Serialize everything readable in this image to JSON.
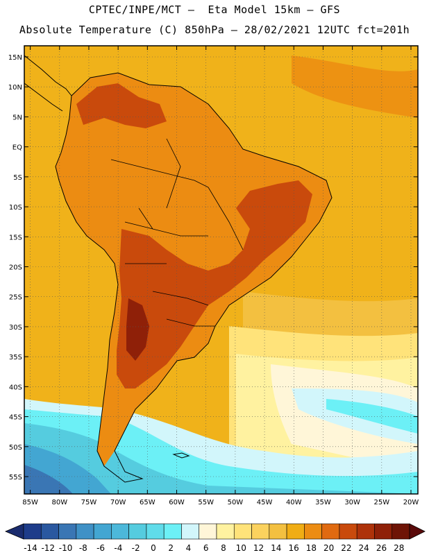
{
  "header": {
    "line1": "CPTEC/INPE/MCT –  Eta Model 15km – GFS",
    "line2": "Absolute Temperature (C) 850hPa – 28/02/2021 12UTC fct=201h"
  },
  "map": {
    "region": "South America",
    "lon_range": [
      -85,
      -20
    ],
    "lat_range": [
      -58,
      17
    ],
    "x_ticks": [
      {
        "v": -85,
        "label": "85W"
      },
      {
        "v": -80,
        "label": "80W"
      },
      {
        "v": -75,
        "label": "75W"
      },
      {
        "v": -70,
        "label": "70W"
      },
      {
        "v": -65,
        "label": "65W"
      },
      {
        "v": -60,
        "label": "60W"
      },
      {
        "v": -55,
        "label": "55W"
      },
      {
        "v": -50,
        "label": "50W"
      },
      {
        "v": -45,
        "label": "45W"
      },
      {
        "v": -40,
        "label": "40W"
      },
      {
        "v": -35,
        "label": "35W"
      },
      {
        "v": -30,
        "label": "30W"
      },
      {
        "v": -25,
        "label": "25W"
      },
      {
        "v": -20,
        "label": "20W"
      }
    ],
    "y_ticks": [
      {
        "v": 15,
        "label": "15N"
      },
      {
        "v": 10,
        "label": "10N"
      },
      {
        "v": 5,
        "label": "5N"
      },
      {
        "v": 0,
        "label": "EQ"
      },
      {
        "v": -5,
        "label": "5S"
      },
      {
        "v": -10,
        "label": "10S"
      },
      {
        "v": -15,
        "label": "15S"
      },
      {
        "v": -20,
        "label": "20S"
      },
      {
        "v": -25,
        "label": "25S"
      },
      {
        "v": -30,
        "label": "30S"
      },
      {
        "v": -35,
        "label": "35S"
      },
      {
        "v": -40,
        "label": "40S"
      },
      {
        "v": -45,
        "label": "45S"
      },
      {
        "v": -50,
        "label": "50S"
      },
      {
        "v": -55,
        "label": "55S"
      }
    ],
    "grid": "dotted",
    "background_color": "#f0b21a"
  },
  "colorbar": {
    "labels": [
      "-14",
      "-12",
      "-10",
      "-8",
      "-6",
      "-4",
      "-2",
      "0",
      "2",
      "4",
      "6",
      "8",
      "10",
      "12",
      "14",
      "16",
      "18",
      "20",
      "22",
      "24",
      "26",
      "28"
    ],
    "colors": [
      "#1e3c8a",
      "#2a58a0",
      "#3a76b4",
      "#3f91c6",
      "#43a6d2",
      "#4cb8da",
      "#55ccdf",
      "#60dcea",
      "#6cf0f6",
      "#d2f6fb",
      "#fff6d8",
      "#fff2a0",
      "#ffe37a",
      "#fbd25e",
      "#f3c040",
      "#f0ad14",
      "#ec8c12",
      "#e06a10",
      "#c94a0c",
      "#ae320a",
      "#8f2008",
      "#6e1406"
    ],
    "left_arrow_color": "#1a2c6e",
    "right_arrow_color": "#5a0a0a"
  }
}
